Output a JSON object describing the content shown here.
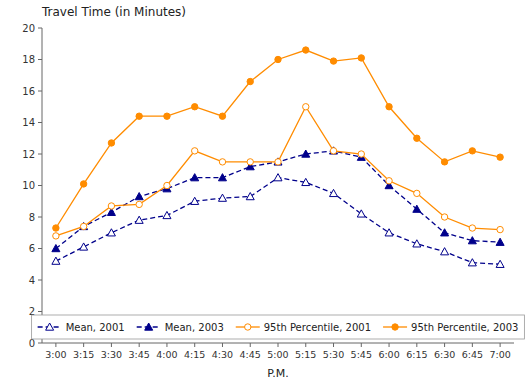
{
  "chart_data": {
    "type": "line",
    "title": "Travel Time (in Minutes)",
    "x_label": "P.M.",
    "categories": [
      "3:00",
      "3:15",
      "3:30",
      "3:45",
      "4:00",
      "4:15",
      "4:30",
      "4:45",
      "5:00",
      "5:15",
      "5:30",
      "5:45",
      "6:00",
      "6:15",
      "6:30",
      "6:45",
      "7:00"
    ],
    "series": [
      {
        "name": "Mean, 2001",
        "color": "#00008B",
        "marker": "triangle-open",
        "line_style": "dashed",
        "values": [
          5.2,
          6.1,
          7.0,
          7.8,
          8.1,
          9.0,
          9.2,
          9.3,
          10.5,
          10.2,
          9.5,
          8.2,
          7.0,
          6.3,
          5.8,
          5.1,
          5.0
        ]
      },
      {
        "name": "Mean, 2003",
        "color": "#00008B",
        "marker": "triangle",
        "line_style": "dashed",
        "values": [
          6.0,
          7.4,
          8.3,
          9.3,
          9.8,
          10.5,
          10.5,
          11.2,
          11.5,
          12.0,
          12.2,
          11.8,
          10.0,
          8.5,
          7.0,
          6.5,
          6.4
        ]
      },
      {
        "name": "95th Percentile, 2001",
        "color": "#FF8C00",
        "marker": "circle-open",
        "line_style": "solid",
        "values": [
          6.8,
          7.4,
          8.7,
          8.8,
          10.0,
          12.2,
          11.5,
          11.5,
          11.5,
          15.0,
          12.2,
          12.0,
          10.3,
          9.5,
          8.0,
          7.3,
          7.2
        ]
      },
      {
        "name": "95th Percentile, 2003",
        "color": "#FF8C00",
        "marker": "circle",
        "line_style": "solid",
        "values": [
          7.3,
          10.1,
          12.7,
          14.4,
          14.4,
          15.0,
          14.4,
          16.6,
          18.0,
          18.6,
          17.9,
          18.1,
          15.0,
          13.0,
          11.5,
          12.2,
          11.8
        ]
      }
    ],
    "ylim": [
      0,
      20
    ],
    "yticks": [
      0,
      2,
      4,
      6,
      8,
      10,
      12,
      14,
      16,
      18,
      20
    ],
    "grid": false,
    "legend": "bottom"
  }
}
